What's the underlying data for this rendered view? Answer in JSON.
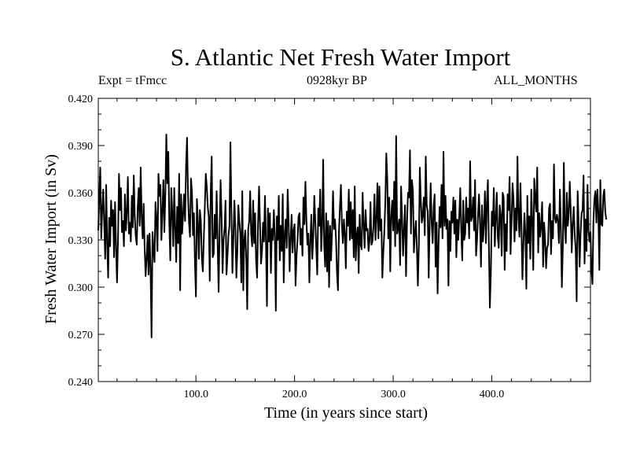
{
  "chart_data": {
    "type": "line",
    "title": "S. Atlantic Net Fresh Water Import",
    "subtitle_left": "Expt = tFmcc",
    "subtitle_center": "0928kyr BP",
    "subtitle_right": "ALL_MONTHS",
    "xlabel": "Time (in years since start)",
    "ylabel": "Fresh Water Import (in Sv)",
    "xlim": [
      1,
      500
    ],
    "ylim": [
      0.24,
      0.42
    ],
    "x_ticks": [
      100,
      200,
      300,
      400
    ],
    "x_tick_labels": [
      "100.0",
      "200.0",
      "300.0",
      "400.0"
    ],
    "y_ticks": [
      0.24,
      0.27,
      0.3,
      0.33,
      0.36,
      0.39,
      0.42
    ],
    "y_tick_labels": [
      "0.240",
      "0.270",
      "0.300",
      "0.330",
      "0.360",
      "0.390",
      "0.420"
    ],
    "grid": false,
    "series": [
      {
        "name": "Fresh Water Import",
        "color": "#000000",
        "x_start": 1,
        "x_step": 1,
        "values": [
          0.336,
          0.358,
          0.376,
          0.331,
          0.349,
          0.362,
          0.341,
          0.318,
          0.365,
          0.328,
          0.306,
          0.344,
          0.326,
          0.355,
          0.339,
          0.349,
          0.319,
          0.354,
          0.326,
          0.303,
          0.33,
          0.372,
          0.349,
          0.363,
          0.335,
          0.342,
          0.326,
          0.359,
          0.336,
          0.348,
          0.37,
          0.334,
          0.341,
          0.329,
          0.358,
          0.338,
          0.371,
          0.345,
          0.332,
          0.327,
          0.351,
          0.363,
          0.339,
          0.376,
          0.345,
          0.331,
          0.353,
          0.325,
          0.307,
          0.318,
          0.333,
          0.308,
          0.334,
          0.311,
          0.268,
          0.335,
          0.323,
          0.316,
          0.354,
          0.343,
          0.323,
          0.372,
          0.358,
          0.365,
          0.33,
          0.348,
          0.368,
          0.335,
          0.36,
          0.397,
          0.366,
          0.386,
          0.341,
          0.317,
          0.363,
          0.348,
          0.326,
          0.363,
          0.338,
          0.316,
          0.351,
          0.328,
          0.372,
          0.298,
          0.359,
          0.334,
          0.346,
          0.359,
          0.342,
          0.377,
          0.395,
          0.358,
          0.341,
          0.332,
          0.369,
          0.36,
          0.333,
          0.347,
          0.315,
          0.294,
          0.356,
          0.341,
          0.318,
          0.349,
          0.342,
          0.318,
          0.31,
          0.331,
          0.351,
          0.372,
          0.364,
          0.351,
          0.345,
          0.304,
          0.361,
          0.383,
          0.319,
          0.321,
          0.346,
          0.331,
          0.361,
          0.328,
          0.297,
          0.336,
          0.368,
          0.345,
          0.309,
          0.33,
          0.337,
          0.355,
          0.308,
          0.32,
          0.333,
          0.339,
          0.392,
          0.347,
          0.309,
          0.332,
          0.355,
          0.337,
          0.306,
          0.323,
          0.352,
          0.342,
          0.334,
          0.303,
          0.361,
          0.298,
          0.33,
          0.336,
          0.318,
          0.286,
          0.337,
          0.342,
          0.361,
          0.334,
          0.326,
          0.355,
          0.328,
          0.347,
          0.317,
          0.306,
          0.341,
          0.364,
          0.339,
          0.315,
          0.323,
          0.341,
          0.329,
          0.358,
          0.329,
          0.288,
          0.35,
          0.329,
          0.347,
          0.309,
          0.337,
          0.33,
          0.349,
          0.332,
          0.285,
          0.345,
          0.33,
          0.358,
          0.317,
          0.339,
          0.323,
          0.359,
          0.303,
          0.333,
          0.343,
          0.325,
          0.362,
          0.341,
          0.31,
          0.331,
          0.346,
          0.322,
          0.336,
          0.34,
          0.301,
          0.32,
          0.33,
          0.345,
          0.347,
          0.327,
          0.337,
          0.32,
          0.357,
          0.34,
          0.367,
          0.343,
          0.327,
          0.334,
          0.303,
          0.329,
          0.346,
          0.318,
          0.333,
          0.358,
          0.342,
          0.325,
          0.308,
          0.35,
          0.339,
          0.362,
          0.323,
          0.339,
          0.381,
          0.327,
          0.313,
          0.347,
          0.31,
          0.342,
          0.3,
          0.339,
          0.317,
          0.335,
          0.361,
          0.337,
          0.343,
          0.331,
          0.309,
          0.298,
          0.335,
          0.351,
          0.365,
          0.34,
          0.328,
          0.343,
          0.333,
          0.312,
          0.348,
          0.339,
          0.362,
          0.33,
          0.354,
          0.331,
          0.349,
          0.319,
          0.364,
          0.317,
          0.333,
          0.338,
          0.309,
          0.346,
          0.327,
          0.324,
          0.36,
          0.34,
          0.325,
          0.349,
          0.336,
          0.337,
          0.323,
          0.33,
          0.354,
          0.327,
          0.329,
          0.339,
          0.359,
          0.33,
          0.343,
          0.366,
          0.331,
          0.364,
          0.336,
          0.343,
          0.306,
          0.322,
          0.335,
          0.354,
          0.385,
          0.369,
          0.331,
          0.357,
          0.31,
          0.345,
          0.355,
          0.336,
          0.367,
          0.326,
          0.396,
          0.334,
          0.337,
          0.343,
          0.314,
          0.364,
          0.344,
          0.32,
          0.337,
          0.352,
          0.307,
          0.341,
          0.36,
          0.357,
          0.387,
          0.334,
          0.368,
          0.361,
          0.322,
          0.334,
          0.342,
          0.325,
          0.301,
          0.326,
          0.376,
          0.355,
          0.341,
          0.345,
          0.357,
          0.333,
          0.383,
          0.352,
          0.348,
          0.306,
          0.342,
          0.366,
          0.341,
          0.328,
          0.351,
          0.359,
          0.313,
          0.341,
          0.296,
          0.327,
          0.351,
          0.338,
          0.365,
          0.331,
          0.386,
          0.339,
          0.358,
          0.337,
          0.343,
          0.301,
          0.342,
          0.323,
          0.348,
          0.341,
          0.357,
          0.334,
          0.355,
          0.319,
          0.343,
          0.33,
          0.346,
          0.363,
          0.336,
          0.317,
          0.355,
          0.33,
          0.334,
          0.357,
          0.341,
          0.35,
          0.331,
          0.38,
          0.342,
          0.345,
          0.357,
          0.336,
          0.368,
          0.32,
          0.33,
          0.346,
          0.359,
          0.341,
          0.313,
          0.352,
          0.329,
          0.34,
          0.361,
          0.328,
          0.354,
          0.368,
          0.327,
          0.287,
          0.309,
          0.348,
          0.339,
          0.363,
          0.326,
          0.344,
          0.36,
          0.332,
          0.325,
          0.352,
          0.346,
          0.32,
          0.36,
          0.357,
          0.311,
          0.34,
          0.323,
          0.359,
          0.349,
          0.37,
          0.321,
          0.341,
          0.366,
          0.356,
          0.329,
          0.35,
          0.336,
          0.383,
          0.344,
          0.332,
          0.366,
          0.339,
          0.305,
          0.327,
          0.347,
          0.334,
          0.299,
          0.358,
          0.328,
          0.345,
          0.318,
          0.362,
          0.342,
          0.311,
          0.369,
          0.357,
          0.348,
          0.376,
          0.322,
          0.347,
          0.332,
          0.339,
          0.354,
          0.313,
          0.341,
          0.33,
          0.312,
          0.325,
          0.327,
          0.35,
          0.353,
          0.321,
          0.342,
          0.331,
          0.378,
          0.344,
          0.341,
          0.346,
          0.342,
          0.328,
          0.362,
          0.337,
          0.3,
          0.326,
          0.379,
          0.338,
          0.328,
          0.36,
          0.339,
          0.347,
          0.367,
          0.348,
          0.322,
          0.34,
          0.351,
          0.334,
          0.324,
          0.291,
          0.361,
          0.34,
          0.313,
          0.335,
          0.347,
          0.349,
          0.371,
          0.315,
          0.343,
          0.323,
          0.365,
          0.336,
          0.329,
          0.335,
          0.311,
          0.302,
          0.342,
          0.356,
          0.361,
          0.341,
          0.362,
          0.347,
          0.311,
          0.368,
          0.34,
          0.339,
          0.358,
          0.362,
          0.348,
          0.343
        ]
      }
    ]
  }
}
